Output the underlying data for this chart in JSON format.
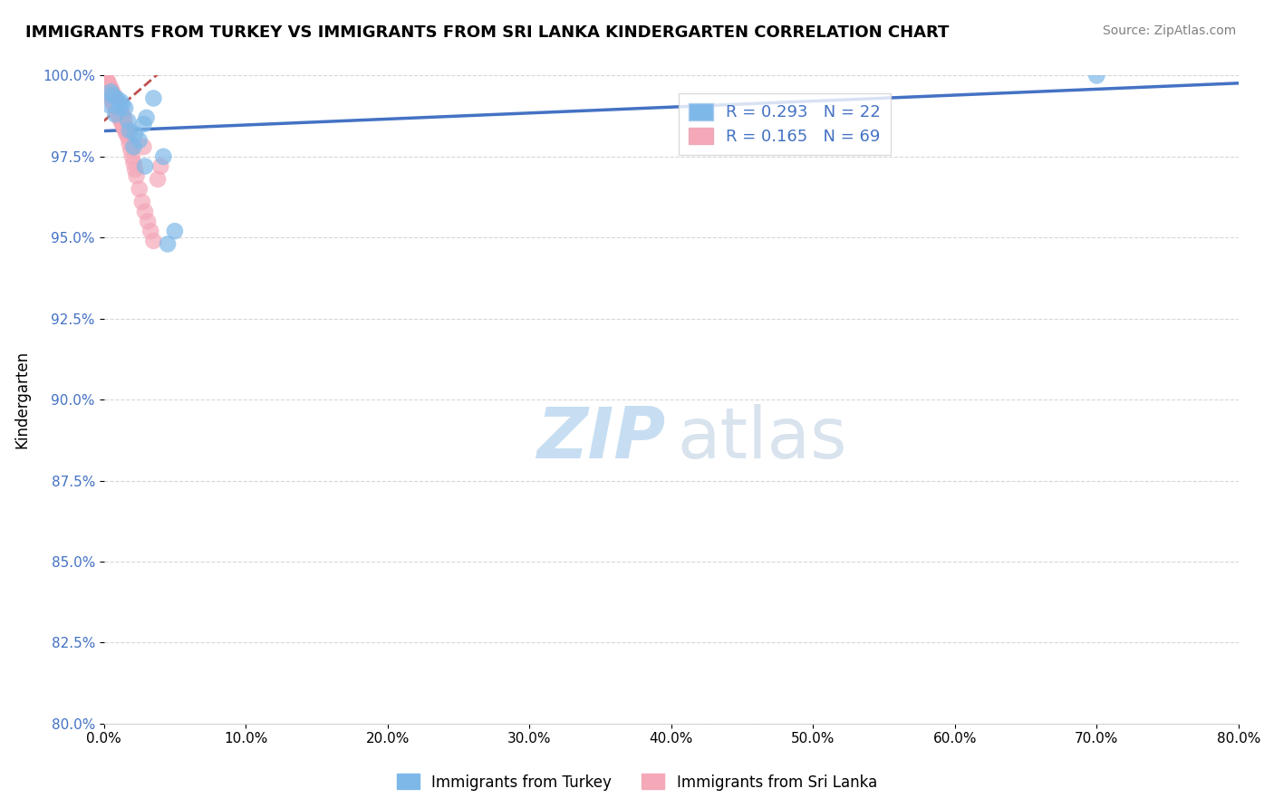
{
  "title": "IMMIGRANTS FROM TURKEY VS IMMIGRANTS FROM SRI LANKA KINDERGARTEN CORRELATION CHART",
  "source": "Source: ZipAtlas.com",
  "xlabel_turkey": "Immigrants from Turkey",
  "xlabel_srilanka": "Immigrants from Sri Lanka",
  "ylabel": "Kindergarten",
  "xlim": [
    0.0,
    80.0
  ],
  "ylim": [
    80.0,
    100.0
  ],
  "yticks": [
    80.0,
    82.5,
    85.0,
    87.5,
    90.0,
    92.5,
    95.0,
    97.5,
    100.0
  ],
  "xticks": [
    0.0,
    10.0,
    20.0,
    30.0,
    40.0,
    50.0,
    60.0,
    70.0,
    80.0
  ],
  "R_turkey": 0.293,
  "N_turkey": 22,
  "R_srilanka": 0.165,
  "N_srilanka": 69,
  "color_turkey": "#7EB8E8",
  "color_srilanka": "#F4A8B8",
  "trendline_turkey_color": "#4472C4",
  "trendline_srilanka_color": "#C0504D",
  "turkey_x": [
    0.5,
    1.2,
    2.1,
    2.8,
    1.5,
    0.8,
    3.5,
    4.2,
    0.3,
    1.8,
    2.5,
    5.0,
    0.6,
    1.1,
    3.0,
    2.2,
    0.9,
    1.7,
    4.5,
    2.9,
    1.3,
    70.0
  ],
  "turkey_y": [
    99.5,
    99.2,
    97.8,
    98.5,
    99.0,
    98.8,
    99.3,
    97.5,
    99.1,
    98.3,
    98.0,
    95.2,
    99.4,
    99.0,
    98.7,
    98.2,
    99.3,
    98.6,
    94.8,
    97.2,
    99.1,
    100.0
  ],
  "srilanka_x": [
    0.1,
    0.15,
    0.2,
    0.25,
    0.3,
    0.35,
    0.4,
    0.45,
    0.5,
    0.55,
    0.6,
    0.65,
    0.7,
    0.75,
    0.8,
    0.85,
    0.9,
    0.95,
    1.0,
    1.05,
    1.1,
    1.15,
    1.2,
    1.25,
    1.3,
    1.35,
    1.4,
    1.45,
    1.5,
    1.6,
    1.7,
    1.8,
    1.9,
    2.0,
    2.1,
    2.2,
    2.3,
    2.5,
    2.7,
    2.9,
    3.1,
    3.3,
    3.5,
    0.3,
    0.5,
    0.7,
    0.9,
    1.1,
    1.3,
    1.5,
    0.4,
    0.6,
    0.8,
    1.0,
    1.2,
    1.4,
    1.6,
    0.2,
    0.35,
    0.55,
    0.75,
    0.85,
    1.05,
    1.25,
    3.8,
    4.0,
    2.8,
    0.15,
    0.25
  ],
  "srilanka_y": [
    99.8,
    99.9,
    99.7,
    99.85,
    99.6,
    99.75,
    99.5,
    99.65,
    99.4,
    99.55,
    99.3,
    99.45,
    99.2,
    99.35,
    99.1,
    99.25,
    99.0,
    99.15,
    98.9,
    99.05,
    98.8,
    98.95,
    98.7,
    98.85,
    98.6,
    98.75,
    98.5,
    98.65,
    98.4,
    98.3,
    98.1,
    97.9,
    97.7,
    97.5,
    97.3,
    97.1,
    96.9,
    96.5,
    96.1,
    95.8,
    95.5,
    95.2,
    94.9,
    99.5,
    99.3,
    99.1,
    98.9,
    98.7,
    98.5,
    98.3,
    99.4,
    99.2,
    99.0,
    98.8,
    98.6,
    98.4,
    98.2,
    99.7,
    99.6,
    99.4,
    99.2,
    99.1,
    98.9,
    98.7,
    96.8,
    97.2,
    97.8,
    99.8,
    99.75
  ]
}
